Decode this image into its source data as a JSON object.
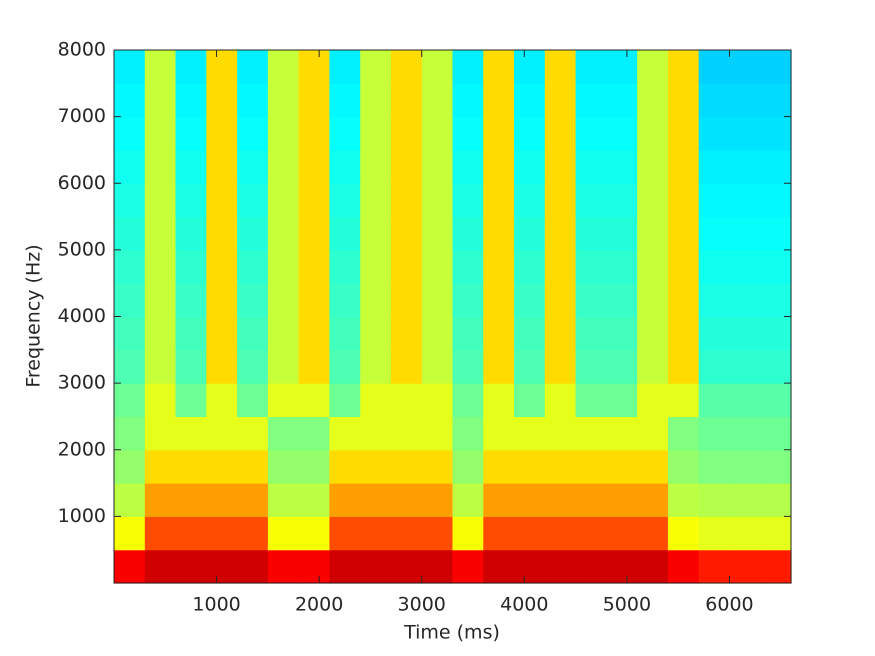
{
  "chart_data": {
    "type": "heatmap",
    "xlabel": "Time (ms)",
    "ylabel": "Frequency (Hz)",
    "xlim": [
      0,
      6600
    ],
    "ylim": [
      0,
      8000
    ],
    "xticks": [
      1000,
      2000,
      3000,
      4000,
      5000,
      6000
    ],
    "yticks": [
      1000,
      2000,
      3000,
      4000,
      5000,
      6000,
      7000,
      8000
    ],
    "colormap": "jet",
    "z": [
      [
        0.88,
        0.92,
        0.92,
        0.92,
        0.92,
        0.88,
        0.88,
        0.92,
        0.92,
        0.92,
        0.92,
        0.88,
        0.92,
        0.92,
        0.92,
        0.92,
        0.92,
        0.92,
        0.88,
        0.85,
        0.85,
        0.85
      ],
      [
        0.62,
        0.8,
        0.8,
        0.8,
        0.8,
        0.62,
        0.62,
        0.8,
        0.8,
        0.8,
        0.8,
        0.62,
        0.8,
        0.8,
        0.8,
        0.8,
        0.8,
        0.8,
        0.62,
        0.6,
        0.6,
        0.6
      ],
      [
        0.56,
        0.72,
        0.72,
        0.72,
        0.72,
        0.56,
        0.56,
        0.72,
        0.72,
        0.72,
        0.72,
        0.56,
        0.72,
        0.72,
        0.72,
        0.72,
        0.72,
        0.72,
        0.56,
        0.55,
        0.55,
        0.55
      ],
      [
        0.52,
        0.66,
        0.66,
        0.66,
        0.66,
        0.52,
        0.52,
        0.66,
        0.66,
        0.66,
        0.66,
        0.52,
        0.66,
        0.66,
        0.66,
        0.66,
        0.66,
        0.66,
        0.52,
        0.5,
        0.5,
        0.5
      ],
      [
        0.5,
        0.6,
        0.6,
        0.6,
        0.6,
        0.5,
        0.5,
        0.6,
        0.6,
        0.6,
        0.6,
        0.5,
        0.6,
        0.6,
        0.6,
        0.6,
        0.6,
        0.6,
        0.5,
        0.48,
        0.48,
        0.48
      ],
      [
        0.48,
        0.6,
        0.48,
        0.6,
        0.48,
        0.6,
        0.6,
        0.48,
        0.6,
        0.6,
        0.6,
        0.48,
        0.6,
        0.48,
        0.6,
        0.48,
        0.48,
        0.6,
        0.6,
        0.46,
        0.46,
        0.46
      ],
      [
        0.45,
        0.57,
        0.45,
        0.66,
        0.45,
        0.57,
        0.66,
        0.45,
        0.57,
        0.66,
        0.57,
        0.45,
        0.66,
        0.45,
        0.66,
        0.45,
        0.45,
        0.57,
        0.66,
        0.42,
        0.42,
        0.42
      ],
      [
        0.44,
        0.57,
        0.44,
        0.66,
        0.44,
        0.57,
        0.66,
        0.44,
        0.57,
        0.66,
        0.57,
        0.44,
        0.66,
        0.44,
        0.66,
        0.44,
        0.44,
        0.57,
        0.66,
        0.41,
        0.41,
        0.41
      ],
      [
        0.43,
        0.57,
        0.43,
        0.66,
        0.43,
        0.57,
        0.66,
        0.43,
        0.57,
        0.66,
        0.57,
        0.43,
        0.66,
        0.43,
        0.66,
        0.43,
        0.43,
        0.57,
        0.66,
        0.4,
        0.4,
        0.4
      ],
      [
        0.42,
        0.57,
        0.42,
        0.66,
        0.42,
        0.57,
        0.66,
        0.42,
        0.57,
        0.66,
        0.57,
        0.42,
        0.66,
        0.42,
        0.66,
        0.42,
        0.42,
        0.57,
        0.66,
        0.39,
        0.39,
        0.39
      ],
      [
        0.41,
        0.57,
        0.41,
        0.66,
        0.41,
        0.57,
        0.66,
        0.41,
        0.57,
        0.66,
        0.57,
        0.41,
        0.66,
        0.41,
        0.66,
        0.41,
        0.41,
        0.57,
        0.66,
        0.38,
        0.38,
        0.38
      ],
      [
        0.4,
        0.57,
        0.4,
        0.66,
        0.4,
        0.57,
        0.66,
        0.4,
        0.57,
        0.66,
        0.57,
        0.4,
        0.66,
        0.4,
        0.66,
        0.4,
        0.4,
        0.57,
        0.66,
        0.37,
        0.37,
        0.37
      ],
      [
        0.39,
        0.57,
        0.39,
        0.66,
        0.39,
        0.57,
        0.66,
        0.39,
        0.57,
        0.66,
        0.57,
        0.39,
        0.66,
        0.39,
        0.66,
        0.39,
        0.39,
        0.57,
        0.66,
        0.36,
        0.36,
        0.36
      ],
      [
        0.38,
        0.57,
        0.38,
        0.66,
        0.38,
        0.57,
        0.66,
        0.38,
        0.57,
        0.66,
        0.57,
        0.38,
        0.66,
        0.38,
        0.66,
        0.38,
        0.38,
        0.57,
        0.66,
        0.35,
        0.35,
        0.35
      ],
      [
        0.37,
        0.57,
        0.37,
        0.66,
        0.37,
        0.57,
        0.66,
        0.37,
        0.57,
        0.66,
        0.57,
        0.37,
        0.66,
        0.37,
        0.66,
        0.37,
        0.37,
        0.57,
        0.66,
        0.34,
        0.34,
        0.34
      ],
      [
        0.36,
        0.57,
        0.36,
        0.66,
        0.36,
        0.57,
        0.66,
        0.36,
        0.57,
        0.66,
        0.57,
        0.36,
        0.66,
        0.36,
        0.66,
        0.36,
        0.36,
        0.57,
        0.66,
        0.33,
        0.33,
        0.33
      ]
    ]
  }
}
